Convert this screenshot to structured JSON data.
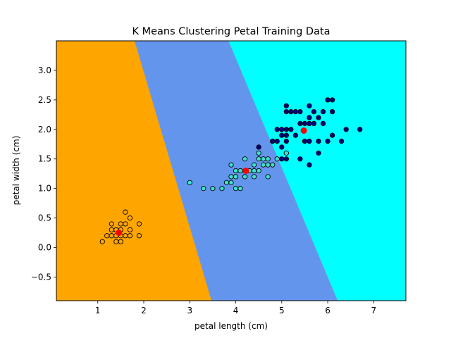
{
  "chart_data": {
    "type": "scatter",
    "title": "K Means Clustering Petal Training Data",
    "xlabel": "petal length (cm)",
    "ylabel": "petal width (cm)",
    "xlim": [
      0.1,
      7.7
    ],
    "ylim": [
      -0.9,
      3.5
    ],
    "xticks": [
      1,
      2,
      3,
      4,
      5,
      6,
      7
    ],
    "yticks": [
      -0.5,
      0.0,
      0.5,
      1.0,
      1.5,
      2.0,
      2.5,
      3.0
    ],
    "ytick_labels": [
      "−0.5",
      "0.0",
      "0.5",
      "1.0",
      "1.5",
      "2.0",
      "2.5",
      "3.0"
    ],
    "grid": false,
    "region_colors": {
      "cluster_0": "#ffa500",
      "cluster_1": "#6495ed",
      "cluster_2": "#00ffff"
    },
    "point_colors": {
      "cluster_0": "#ffa500",
      "cluster_1": "#40e0d0",
      "cluster_2": "#000080"
    },
    "centroid_color": "#ff0000",
    "centroids": [
      {
        "cluster": 0,
        "x": 1.46,
        "y": 0.25
      },
      {
        "cluster": 1,
        "x": 4.22,
        "y": 1.3
      },
      {
        "cluster": 2,
        "x": 5.48,
        "y": 1.98
      }
    ],
    "series": [
      {
        "cluster": 0,
        "points": [
          [
            1.1,
            0.1
          ],
          [
            1.2,
            0.2
          ],
          [
            1.3,
            0.2
          ],
          [
            1.3,
            0.3
          ],
          [
            1.3,
            0.4
          ],
          [
            1.4,
            0.1
          ],
          [
            1.4,
            0.2
          ],
          [
            1.4,
            0.3
          ],
          [
            1.5,
            0.1
          ],
          [
            1.5,
            0.2
          ],
          [
            1.5,
            0.3
          ],
          [
            1.5,
            0.4
          ],
          [
            1.6,
            0.2
          ],
          [
            1.6,
            0.6
          ],
          [
            1.7,
            0.2
          ],
          [
            1.7,
            0.3
          ],
          [
            1.7,
            0.5
          ],
          [
            1.9,
            0.2
          ],
          [
            1.9,
            0.4
          ],
          [
            1.6,
            0.4
          ]
        ]
      },
      {
        "cluster": 1,
        "points": [
          [
            3.0,
            1.1
          ],
          [
            3.3,
            1.0
          ],
          [
            3.5,
            1.0
          ],
          [
            3.7,
            1.0
          ],
          [
            3.8,
            1.1
          ],
          [
            3.9,
            1.1
          ],
          [
            3.9,
            1.2
          ],
          [
            3.9,
            1.4
          ],
          [
            4.0,
            1.0
          ],
          [
            4.0,
            1.2
          ],
          [
            4.0,
            1.3
          ],
          [
            4.1,
            1.0
          ],
          [
            4.1,
            1.3
          ],
          [
            4.2,
            1.2
          ],
          [
            4.2,
            1.3
          ],
          [
            4.2,
            1.5
          ],
          [
            4.3,
            1.3
          ],
          [
            4.4,
            1.2
          ],
          [
            4.4,
            1.3
          ],
          [
            4.4,
            1.4
          ],
          [
            4.5,
            1.3
          ],
          [
            4.5,
            1.5
          ],
          [
            4.5,
            1.6
          ],
          [
            4.6,
            1.4
          ],
          [
            4.6,
            1.5
          ],
          [
            4.7,
            1.2
          ],
          [
            4.7,
            1.4
          ],
          [
            4.7,
            1.5
          ],
          [
            4.8,
            1.8
          ],
          [
            5.1,
            1.6
          ],
          [
            4.9,
            1.5
          ],
          [
            4.8,
            1.4
          ]
        ]
      },
      {
        "cluster": 2,
        "points": [
          [
            4.5,
            1.7
          ],
          [
            4.8,
            1.8
          ],
          [
            4.9,
            1.8
          ],
          [
            4.9,
            2.0
          ],
          [
            5.0,
            1.5
          ],
          [
            5.0,
            1.9
          ],
          [
            5.0,
            2.0
          ],
          [
            5.1,
            1.5
          ],
          [
            5.1,
            1.8
          ],
          [
            5.1,
            1.9
          ],
          [
            5.1,
            2.0
          ],
          [
            5.1,
            2.3
          ],
          [
            5.1,
            2.4
          ],
          [
            5.2,
            2.0
          ],
          [
            5.2,
            2.3
          ],
          [
            5.3,
            1.9
          ],
          [
            5.3,
            2.3
          ],
          [
            5.4,
            2.1
          ],
          [
            5.4,
            2.3
          ],
          [
            5.5,
            1.8
          ],
          [
            5.5,
            2.1
          ],
          [
            5.6,
            1.4
          ],
          [
            5.6,
            1.8
          ],
          [
            5.6,
            2.1
          ],
          [
            5.6,
            2.2
          ],
          [
            5.6,
            2.4
          ],
          [
            5.7,
            2.1
          ],
          [
            5.7,
            2.3
          ],
          [
            5.8,
            1.6
          ],
          [
            5.8,
            1.8
          ],
          [
            5.9,
            2.1
          ],
          [
            5.9,
            2.3
          ],
          [
            6.0,
            1.8
          ],
          [
            6.0,
            2.5
          ],
          [
            6.1,
            1.9
          ],
          [
            6.1,
            2.3
          ],
          [
            6.1,
            2.5
          ],
          [
            6.3,
            1.8
          ],
          [
            6.4,
            2.0
          ],
          [
            6.7,
            2.0
          ],
          [
            5.0,
            1.7
          ],
          [
            5.8,
            2.2
          ],
          [
            5.4,
            1.5
          ]
        ]
      }
    ]
  }
}
